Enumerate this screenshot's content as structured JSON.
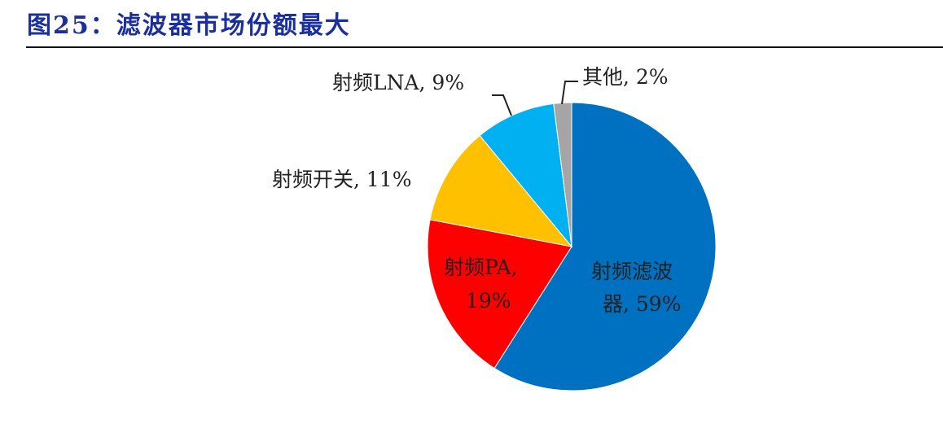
{
  "header": {
    "title": "图25：滤波器市场份额最大"
  },
  "chart_data": {
    "type": "pie",
    "title": "图25：滤波器市场份额最大",
    "start_angle": "12 o'clock, clockwise",
    "slices": [
      {
        "label": "射频滤波器",
        "value": 59,
        "color": "#0070c0",
        "display": "射频滤波器, 59%"
      },
      {
        "label": "射频PA",
        "value": 19,
        "color": "#ff0000",
        "display": "射频PA, 19%"
      },
      {
        "label": "射频开关",
        "value": 11,
        "color": "#ffc000",
        "display": "射频开关, 11%"
      },
      {
        "label": "射频LNA",
        "value": 9,
        "color": "#00b0f0",
        "display": "射频LNA, 9%"
      },
      {
        "label": "其他",
        "value": 2,
        "color": "#a5a5a5",
        "display": "其他, 2%"
      }
    ]
  },
  "labels": {
    "filter_l1": "射频滤波",
    "filter_l2": "器, 59%",
    "pa_l1": "射频PA,",
    "pa_l2": "19%",
    "switch": "射频开关, 11%",
    "lna": "射频LNA, 9%",
    "other": "其他, 2%"
  }
}
